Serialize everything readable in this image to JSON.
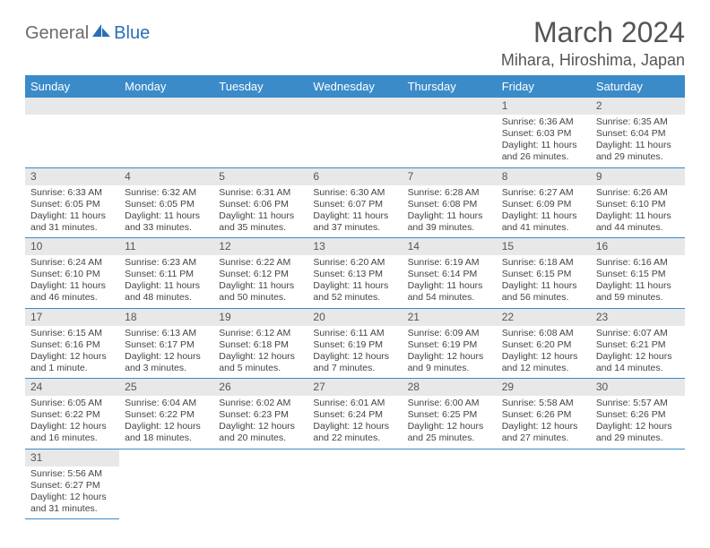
{
  "logo": {
    "general": "General",
    "blue": "Blue"
  },
  "title": "March 2024",
  "location": "Mihara, Hiroshima, Japan",
  "colors": {
    "header_bg": "#3b8bc9",
    "header_text": "#ffffff",
    "daynum_bg": "#e8e8e8",
    "row_border": "#3b8bc9",
    "body_text": "#444444",
    "title_text": "#555555",
    "logo_blue": "#2a6fb5"
  },
  "weekdays": [
    "Sunday",
    "Monday",
    "Tuesday",
    "Wednesday",
    "Thursday",
    "Friday",
    "Saturday"
  ],
  "weeks": [
    [
      null,
      null,
      null,
      null,
      null,
      {
        "d": "1",
        "sr": "Sunrise: 6:36 AM",
        "ss": "Sunset: 6:03 PM",
        "dl1": "Daylight: 11 hours",
        "dl2": "and 26 minutes."
      },
      {
        "d": "2",
        "sr": "Sunrise: 6:35 AM",
        "ss": "Sunset: 6:04 PM",
        "dl1": "Daylight: 11 hours",
        "dl2": "and 29 minutes."
      }
    ],
    [
      {
        "d": "3",
        "sr": "Sunrise: 6:33 AM",
        "ss": "Sunset: 6:05 PM",
        "dl1": "Daylight: 11 hours",
        "dl2": "and 31 minutes."
      },
      {
        "d": "4",
        "sr": "Sunrise: 6:32 AM",
        "ss": "Sunset: 6:05 PM",
        "dl1": "Daylight: 11 hours",
        "dl2": "and 33 minutes."
      },
      {
        "d": "5",
        "sr": "Sunrise: 6:31 AM",
        "ss": "Sunset: 6:06 PM",
        "dl1": "Daylight: 11 hours",
        "dl2": "and 35 minutes."
      },
      {
        "d": "6",
        "sr": "Sunrise: 6:30 AM",
        "ss": "Sunset: 6:07 PM",
        "dl1": "Daylight: 11 hours",
        "dl2": "and 37 minutes."
      },
      {
        "d": "7",
        "sr": "Sunrise: 6:28 AM",
        "ss": "Sunset: 6:08 PM",
        "dl1": "Daylight: 11 hours",
        "dl2": "and 39 minutes."
      },
      {
        "d": "8",
        "sr": "Sunrise: 6:27 AM",
        "ss": "Sunset: 6:09 PM",
        "dl1": "Daylight: 11 hours",
        "dl2": "and 41 minutes."
      },
      {
        "d": "9",
        "sr": "Sunrise: 6:26 AM",
        "ss": "Sunset: 6:10 PM",
        "dl1": "Daylight: 11 hours",
        "dl2": "and 44 minutes."
      }
    ],
    [
      {
        "d": "10",
        "sr": "Sunrise: 6:24 AM",
        "ss": "Sunset: 6:10 PM",
        "dl1": "Daylight: 11 hours",
        "dl2": "and 46 minutes."
      },
      {
        "d": "11",
        "sr": "Sunrise: 6:23 AM",
        "ss": "Sunset: 6:11 PM",
        "dl1": "Daylight: 11 hours",
        "dl2": "and 48 minutes."
      },
      {
        "d": "12",
        "sr": "Sunrise: 6:22 AM",
        "ss": "Sunset: 6:12 PM",
        "dl1": "Daylight: 11 hours",
        "dl2": "and 50 minutes."
      },
      {
        "d": "13",
        "sr": "Sunrise: 6:20 AM",
        "ss": "Sunset: 6:13 PM",
        "dl1": "Daylight: 11 hours",
        "dl2": "and 52 minutes."
      },
      {
        "d": "14",
        "sr": "Sunrise: 6:19 AM",
        "ss": "Sunset: 6:14 PM",
        "dl1": "Daylight: 11 hours",
        "dl2": "and 54 minutes."
      },
      {
        "d": "15",
        "sr": "Sunrise: 6:18 AM",
        "ss": "Sunset: 6:15 PM",
        "dl1": "Daylight: 11 hours",
        "dl2": "and 56 minutes."
      },
      {
        "d": "16",
        "sr": "Sunrise: 6:16 AM",
        "ss": "Sunset: 6:15 PM",
        "dl1": "Daylight: 11 hours",
        "dl2": "and 59 minutes."
      }
    ],
    [
      {
        "d": "17",
        "sr": "Sunrise: 6:15 AM",
        "ss": "Sunset: 6:16 PM",
        "dl1": "Daylight: 12 hours",
        "dl2": "and 1 minute."
      },
      {
        "d": "18",
        "sr": "Sunrise: 6:13 AM",
        "ss": "Sunset: 6:17 PM",
        "dl1": "Daylight: 12 hours",
        "dl2": "and 3 minutes."
      },
      {
        "d": "19",
        "sr": "Sunrise: 6:12 AM",
        "ss": "Sunset: 6:18 PM",
        "dl1": "Daylight: 12 hours",
        "dl2": "and 5 minutes."
      },
      {
        "d": "20",
        "sr": "Sunrise: 6:11 AM",
        "ss": "Sunset: 6:19 PM",
        "dl1": "Daylight: 12 hours",
        "dl2": "and 7 minutes."
      },
      {
        "d": "21",
        "sr": "Sunrise: 6:09 AM",
        "ss": "Sunset: 6:19 PM",
        "dl1": "Daylight: 12 hours",
        "dl2": "and 9 minutes."
      },
      {
        "d": "22",
        "sr": "Sunrise: 6:08 AM",
        "ss": "Sunset: 6:20 PM",
        "dl1": "Daylight: 12 hours",
        "dl2": "and 12 minutes."
      },
      {
        "d": "23",
        "sr": "Sunrise: 6:07 AM",
        "ss": "Sunset: 6:21 PM",
        "dl1": "Daylight: 12 hours",
        "dl2": "and 14 minutes."
      }
    ],
    [
      {
        "d": "24",
        "sr": "Sunrise: 6:05 AM",
        "ss": "Sunset: 6:22 PM",
        "dl1": "Daylight: 12 hours",
        "dl2": "and 16 minutes."
      },
      {
        "d": "25",
        "sr": "Sunrise: 6:04 AM",
        "ss": "Sunset: 6:22 PM",
        "dl1": "Daylight: 12 hours",
        "dl2": "and 18 minutes."
      },
      {
        "d": "26",
        "sr": "Sunrise: 6:02 AM",
        "ss": "Sunset: 6:23 PM",
        "dl1": "Daylight: 12 hours",
        "dl2": "and 20 minutes."
      },
      {
        "d": "27",
        "sr": "Sunrise: 6:01 AM",
        "ss": "Sunset: 6:24 PM",
        "dl1": "Daylight: 12 hours",
        "dl2": "and 22 minutes."
      },
      {
        "d": "28",
        "sr": "Sunrise: 6:00 AM",
        "ss": "Sunset: 6:25 PM",
        "dl1": "Daylight: 12 hours",
        "dl2": "and 25 minutes."
      },
      {
        "d": "29",
        "sr": "Sunrise: 5:58 AM",
        "ss": "Sunset: 6:26 PM",
        "dl1": "Daylight: 12 hours",
        "dl2": "and 27 minutes."
      },
      {
        "d": "30",
        "sr": "Sunrise: 5:57 AM",
        "ss": "Sunset: 6:26 PM",
        "dl1": "Daylight: 12 hours",
        "dl2": "and 29 minutes."
      }
    ],
    [
      {
        "d": "31",
        "sr": "Sunrise: 5:56 AM",
        "ss": "Sunset: 6:27 PM",
        "dl1": "Daylight: 12 hours",
        "dl2": "and 31 minutes."
      },
      null,
      null,
      null,
      null,
      null,
      null
    ]
  ]
}
